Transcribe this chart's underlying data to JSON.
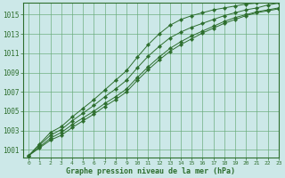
{
  "title": "Graphe pression niveau de la mer (hPa)",
  "background_color": "#cce8e8",
  "grid_color": "#66aa77",
  "line_color": "#2d6e2d",
  "xlim": [
    -0.5,
    23
  ],
  "ylim": [
    1000.2,
    1016.2
  ],
  "yticks": [
    1001,
    1003,
    1005,
    1007,
    1009,
    1011,
    1013,
    1015
  ],
  "xticks": [
    0,
    1,
    2,
    3,
    4,
    5,
    6,
    7,
    8,
    9,
    10,
    11,
    12,
    13,
    14,
    15,
    16,
    17,
    18,
    19,
    20,
    21,
    22,
    23
  ],
  "series": [
    [
      1000.4,
      1001.3,
      1002.2,
      1002.8,
      1003.6,
      1004.3,
      1005.0,
      1005.8,
      1006.5,
      1007.3,
      1008.5,
      1009.6,
      1010.6,
      1011.5,
      1012.2,
      1012.8,
      1013.3,
      1013.8,
      1014.3,
      1014.7,
      1015.0,
      1015.3,
      1015.5,
      1015.7
    ],
    [
      1000.4,
      1001.5,
      1002.5,
      1003.1,
      1004.0,
      1004.8,
      1005.6,
      1006.5,
      1007.3,
      1008.2,
      1009.5,
      1010.7,
      1011.7,
      1012.6,
      1013.2,
      1013.7,
      1014.1,
      1014.5,
      1014.9,
      1015.2,
      1015.5,
      1015.7,
      1016.0,
      1016.2
    ],
    [
      1000.4,
      1001.2,
      1002.0,
      1002.5,
      1003.3,
      1004.0,
      1004.7,
      1005.5,
      1006.2,
      1007.0,
      1008.2,
      1009.3,
      1010.3,
      1011.2,
      1011.9,
      1012.5,
      1013.1,
      1013.6,
      1014.1,
      1014.5,
      1014.9,
      1015.2,
      1015.4,
      1015.6
    ],
    [
      1000.4,
      1001.6,
      1002.8,
      1003.4,
      1004.4,
      1005.3,
      1006.2,
      1007.2,
      1008.2,
      1009.2,
      1010.6,
      1011.9,
      1013.0,
      1013.9,
      1014.5,
      1014.9,
      1015.2,
      1015.5,
      1015.7,
      1015.9,
      1016.1,
      1016.2,
      1016.3,
      1016.4
    ]
  ]
}
